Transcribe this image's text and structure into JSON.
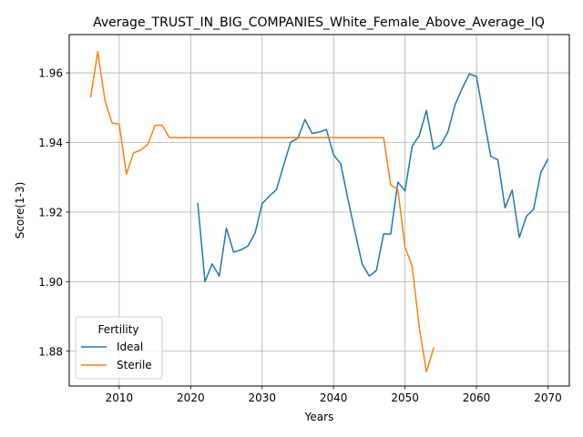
{
  "chart_data": {
    "type": "line",
    "title": "Average_TRUST_IN_BIG_COMPANIES_White_Female_Above_Average_IQ",
    "xlabel": "Years",
    "ylabel": "Score(1-3)",
    "xlim": [
      2003,
      2073
    ],
    "ylim": [
      1.87,
      1.971
    ],
    "xticks": [
      2010,
      2020,
      2030,
      2040,
      2050,
      2060,
      2070
    ],
    "yticks": [
      1.88,
      1.9,
      1.92,
      1.94,
      1.96
    ],
    "ytick_labels": [
      "1.88",
      "1.90",
      "1.92",
      "1.94",
      "1.96"
    ],
    "grid": true,
    "legend": {
      "title": "Fertility",
      "placement": "lower-left"
    },
    "series": [
      {
        "name": "Ideal",
        "color": "#1f77b4",
        "x": [
          2021,
          2022,
          2023,
          2024,
          2025,
          2026,
          2027,
          2028,
          2029,
          2030,
          2031,
          2032,
          2033,
          2034,
          2035,
          2036,
          2037,
          2038,
          2039,
          2040,
          2041,
          2042,
          2043,
          2044,
          2045,
          2046,
          2047,
          2048,
          2049,
          2050,
          2051,
          2052,
          2053,
          2054,
          2055,
          2056,
          2057,
          2058,
          2059,
          2060,
          2061,
          2062,
          2063,
          2064,
          2065,
          2066,
          2067,
          2068,
          2069,
          2070
        ],
        "y": [
          1.9224,
          1.9,
          1.9051,
          1.9016,
          1.9154,
          1.9085,
          1.9091,
          1.9102,
          1.9139,
          1.9224,
          1.9246,
          1.9264,
          1.9334,
          1.9401,
          1.9412,
          1.9466,
          1.9426,
          1.943,
          1.9437,
          1.9364,
          1.9339,
          1.9238,
          1.9143,
          1.9051,
          1.9016,
          1.9032,
          1.9137,
          1.9137,
          1.9286,
          1.9261,
          1.9389,
          1.942,
          1.9492,
          1.938,
          1.9393,
          1.943,
          1.9508,
          1.9555,
          1.9597,
          1.959,
          1.9474,
          1.936,
          1.935,
          1.9212,
          1.9263,
          1.9127,
          1.9188,
          1.9208,
          1.9313,
          1.9352
        ]
      },
      {
        "name": "Sterile",
        "color": "#ff7f0e",
        "x": [
          2006,
          2007,
          2008,
          2009,
          2010,
          2011,
          2012,
          2013,
          2014,
          2015,
          2016,
          2017,
          2018,
          2019,
          2020,
          2021,
          2022,
          2023,
          2024,
          2025,
          2026,
          2027,
          2028,
          2029,
          2030,
          2031,
          2032,
          2033,
          2034,
          2035,
          2036,
          2037,
          2038,
          2039,
          2040,
          2041,
          2042,
          2043,
          2044,
          2045,
          2046,
          2047,
          2048,
          2049,
          2050,
          2051,
          2052,
          2053,
          2054
        ],
        "y": [
          1.9531,
          1.9661,
          1.952,
          1.9456,
          1.9453,
          1.9309,
          1.937,
          1.9378,
          1.9394,
          1.9449,
          1.945,
          1.9414,
          1.9414,
          1.9414,
          1.9414,
          1.9414,
          1.9414,
          1.9414,
          1.9414,
          1.9414,
          1.9414,
          1.9414,
          1.9414,
          1.9414,
          1.9414,
          1.9414,
          1.9414,
          1.9414,
          1.9414,
          1.9414,
          1.9414,
          1.9414,
          1.9414,
          1.9414,
          1.9414,
          1.9414,
          1.9414,
          1.9414,
          1.9414,
          1.9414,
          1.9414,
          1.9414,
          1.9278,
          1.9265,
          1.9099,
          1.9045,
          1.8868,
          1.8741,
          1.8809
        ]
      }
    ]
  }
}
